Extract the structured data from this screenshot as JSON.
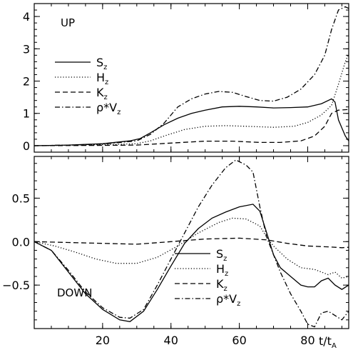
{
  "chart_data": [
    {
      "type": "line",
      "panel_label": "UP",
      "xlim": [
        0,
        92
      ],
      "ylim": [
        -0.2,
        4.4
      ],
      "yticks": [
        0,
        1,
        2,
        3,
        4
      ],
      "xticks": [
        20,
        40,
        60,
        80
      ],
      "xlabel": "",
      "legend": "left",
      "series": [
        {
          "name": "S_z",
          "legend_main": "S",
          "legend_sub": "z",
          "style": "solid",
          "points": [
            [
              0,
              0
            ],
            [
              10,
              0.02
            ],
            [
              20,
              0.06
            ],
            [
              28,
              0.15
            ],
            [
              31,
              0.22
            ],
            [
              34,
              0.4
            ],
            [
              38,
              0.65
            ],
            [
              42,
              0.85
            ],
            [
              46,
              1.0
            ],
            [
              50,
              1.1
            ],
            [
              55,
              1.2
            ],
            [
              60,
              1.22
            ],
            [
              65,
              1.2
            ],
            [
              70,
              1.17
            ],
            [
              75,
              1.18
            ],
            [
              80,
              1.2
            ],
            [
              84,
              1.3
            ],
            [
              87,
              1.45
            ],
            [
              88,
              1.35
            ],
            [
              89,
              0.8
            ],
            [
              90,
              0.55
            ],
            [
              91,
              0.3
            ],
            [
              92,
              0.15
            ],
            [
              94,
              0.05
            ]
          ]
        },
        {
          "name": "H_z",
          "legend_main": "H",
          "legend_sub": "z",
          "style": "dotted",
          "points": [
            [
              0,
              0
            ],
            [
              20,
              0.03
            ],
            [
              30,
              0.06
            ],
            [
              34,
              0.15
            ],
            [
              38,
              0.3
            ],
            [
              44,
              0.5
            ],
            [
              50,
              0.6
            ],
            [
              56,
              0.62
            ],
            [
              62,
              0.6
            ],
            [
              70,
              0.57
            ],
            [
              76,
              0.6
            ],
            [
              80,
              0.72
            ],
            [
              84,
              0.95
            ],
            [
              87,
              1.25
            ],
            [
              89,
              1.9
            ],
            [
              91,
              2.6
            ],
            [
              92,
              2.85
            ],
            [
              93,
              2.5
            ],
            [
              94,
              1.5
            ]
          ]
        },
        {
          "name": "K_z",
          "legend_main": "K",
          "legend_sub": "z",
          "style": "dashed",
          "points": [
            [
              0,
              0
            ],
            [
              20,
              0.01
            ],
            [
              30,
              0.02
            ],
            [
              40,
              0.08
            ],
            [
              50,
              0.14
            ],
            [
              58,
              0.14
            ],
            [
              66,
              0.1
            ],
            [
              72,
              0.1
            ],
            [
              78,
              0.15
            ],
            [
              82,
              0.3
            ],
            [
              85,
              0.6
            ],
            [
              87,
              1.0
            ],
            [
              89,
              1.1
            ],
            [
              92,
              1.12
            ],
            [
              94,
              1.05
            ]
          ]
        },
        {
          "name": "ρ*V_z",
          "legend_main": "ρ*V",
          "legend_sub": "z",
          "style": "dashdot",
          "points": [
            [
              0,
              0
            ],
            [
              10,
              0.02
            ],
            [
              20,
              0.05
            ],
            [
              30,
              0.15
            ],
            [
              34,
              0.35
            ],
            [
              38,
              0.7
            ],
            [
              42,
              1.2
            ],
            [
              46,
              1.45
            ],
            [
              50,
              1.6
            ],
            [
              54,
              1.68
            ],
            [
              58,
              1.65
            ],
            [
              62,
              1.52
            ],
            [
              66,
              1.4
            ],
            [
              70,
              1.38
            ],
            [
              74,
              1.5
            ],
            [
              78,
              1.75
            ],
            [
              82,
              2.2
            ],
            [
              85,
              2.8
            ],
            [
              87,
              3.6
            ],
            [
              89,
              4.2
            ],
            [
              91,
              4.3
            ],
            [
              92,
              4.25
            ],
            [
              93,
              3.0
            ],
            [
              94,
              2.7
            ]
          ]
        }
      ]
    },
    {
      "type": "line",
      "panel_label": "DOWN",
      "xlim": [
        0,
        92
      ],
      "ylim": [
        -1.0,
        0.98
      ],
      "yticks": [
        -0.5,
        0.0,
        0.5
      ],
      "ytick_labels": [
        "−0.5",
        "0.0",
        "0.5"
      ],
      "xticks": [
        20,
        40,
        60,
        80
      ],
      "xlabel": "t/t",
      "xlabel_sub": "A",
      "legend": "bottom-right",
      "series": [
        {
          "name": "S_z",
          "legend_main": "S",
          "legend_sub": "z",
          "style": "solid",
          "points": [
            [
              0,
              0
            ],
            [
              5,
              -0.1
            ],
            [
              10,
              -0.35
            ],
            [
              15,
              -0.6
            ],
            [
              20,
              -0.78
            ],
            [
              25,
              -0.9
            ],
            [
              28,
              -0.92
            ],
            [
              32,
              -0.8
            ],
            [
              36,
              -0.55
            ],
            [
              40,
              -0.28
            ],
            [
              44,
              -0.02
            ],
            [
              48,
              0.15
            ],
            [
              52,
              0.27
            ],
            [
              56,
              0.34
            ],
            [
              60,
              0.4
            ],
            [
              64,
              0.43
            ],
            [
              66,
              0.35
            ],
            [
              68,
              0.1
            ],
            [
              70,
              -0.15
            ],
            [
              72,
              -0.3
            ],
            [
              75,
              -0.4
            ],
            [
              78,
              -0.5
            ],
            [
              80,
              -0.52
            ],
            [
              82,
              -0.52
            ],
            [
              84,
              -0.45
            ],
            [
              86,
              -0.42
            ],
            [
              88,
              -0.5
            ],
            [
              90,
              -0.55
            ],
            [
              92,
              -0.5
            ],
            [
              94,
              -0.35
            ]
          ]
        },
        {
          "name": "H_z",
          "legend_main": "H",
          "legend_sub": "z",
          "style": "dotted",
          "points": [
            [
              0,
              0
            ],
            [
              6,
              -0.05
            ],
            [
              12,
              -0.12
            ],
            [
              18,
              -0.2
            ],
            [
              24,
              -0.25
            ],
            [
              30,
              -0.25
            ],
            [
              36,
              -0.18
            ],
            [
              42,
              -0.05
            ],
            [
              48,
              0.1
            ],
            [
              54,
              0.22
            ],
            [
              58,
              0.27
            ],
            [
              62,
              0.26
            ],
            [
              66,
              0.18
            ],
            [
              68,
              0.05
            ],
            [
              70,
              -0.05
            ],
            [
              74,
              -0.2
            ],
            [
              78,
              -0.3
            ],
            [
              82,
              -0.32
            ],
            [
              86,
              -0.38
            ],
            [
              88,
              -0.35
            ],
            [
              90,
              -0.42
            ],
            [
              92,
              -0.4
            ],
            [
              94,
              -0.3
            ]
          ]
        },
        {
          "name": "K_z",
          "legend_main": "K",
          "legend_sub": "z",
          "style": "dashed",
          "points": [
            [
              0,
              0
            ],
            [
              10,
              -0.01
            ],
            [
              20,
              -0.02
            ],
            [
              30,
              -0.03
            ],
            [
              40,
              0.0
            ],
            [
              50,
              0.03
            ],
            [
              60,
              0.04
            ],
            [
              68,
              0.02
            ],
            [
              74,
              -0.02
            ],
            [
              80,
              -0.05
            ],
            [
              86,
              -0.06
            ],
            [
              90,
              -0.07
            ],
            [
              94,
              -0.06
            ]
          ]
        },
        {
          "name": "ρ*V_z",
          "legend_main": "ρ*V",
          "legend_sub": "z",
          "style": "dashdot",
          "points": [
            [
              0,
              0
            ],
            [
              5,
              -0.1
            ],
            [
              10,
              -0.33
            ],
            [
              15,
              -0.58
            ],
            [
              20,
              -0.76
            ],
            [
              25,
              -0.87
            ],
            [
              28,
              -0.88
            ],
            [
              32,
              -0.78
            ],
            [
              36,
              -0.5
            ],
            [
              40,
              -0.2
            ],
            [
              44,
              0.1
            ],
            [
              48,
              0.4
            ],
            [
              52,
              0.65
            ],
            [
              56,
              0.85
            ],
            [
              59,
              0.94
            ],
            [
              62,
              0.88
            ],
            [
              64,
              0.8
            ],
            [
              66,
              0.4
            ],
            [
              68,
              0.05
            ],
            [
              70,
              -0.15
            ],
            [
              72,
              -0.35
            ],
            [
              75,
              -0.6
            ],
            [
              78,
              -0.8
            ],
            [
              80,
              -0.95
            ],
            [
              82,
              -0.98
            ],
            [
              84,
              -0.82
            ],
            [
              86,
              -0.8
            ],
            [
              88,
              -0.85
            ],
            [
              90,
              -0.9
            ],
            [
              92,
              -0.8
            ],
            [
              94,
              -0.5
            ]
          ]
        }
      ]
    }
  ]
}
